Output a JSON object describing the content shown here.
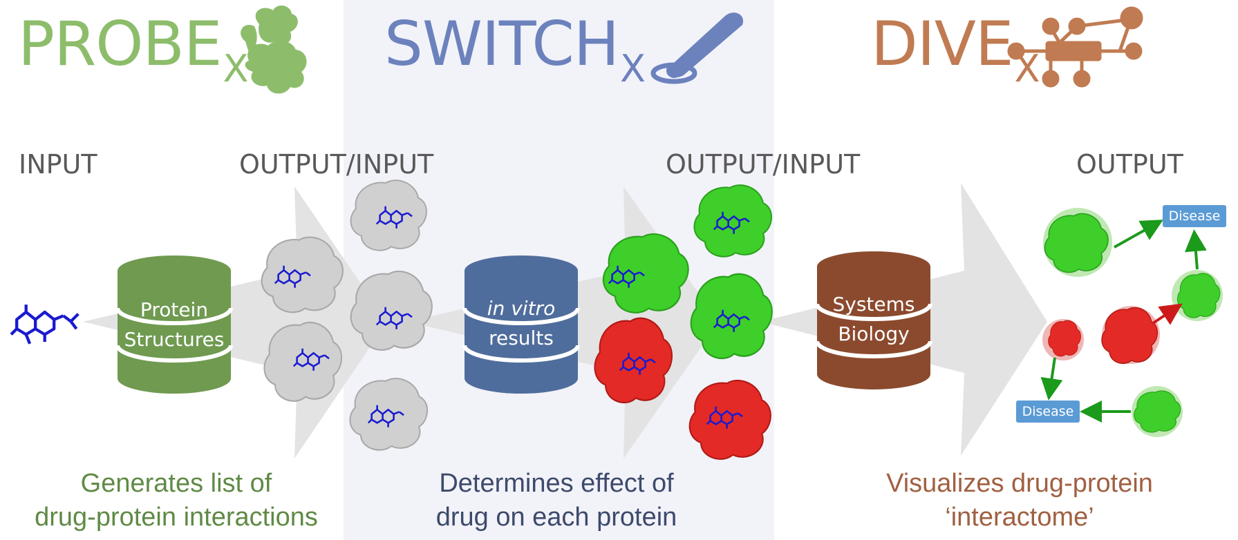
{
  "tools": {
    "probe": {
      "name": "PROBE",
      "sub": "X",
      "color": "#8dbd6b",
      "icon": "protein-cluster-icon"
    },
    "switch": {
      "name": "SWITCH",
      "sub": "X",
      "color": "#6c82bd",
      "icon": "toggle-switch-icon"
    },
    "dive": {
      "name": "DIVE",
      "sub": "X",
      "color": "#c07b52",
      "icon": "network-icon"
    }
  },
  "stages": {
    "input": "INPUT",
    "output_input_1": "OUTPUT/INPUT",
    "output_input_2": "OUTPUT/INPUT",
    "output": "OUTPUT"
  },
  "databases": {
    "protein": {
      "line1": "Protein",
      "line2": "Structures",
      "color": "#6f9a50"
    },
    "invitro": {
      "line1": "in vitro",
      "line2": "results",
      "color": "#4f6d9c"
    },
    "systems": {
      "line1": "Systems",
      "line2": "Biology",
      "color": "#8b4a2e"
    }
  },
  "network": {
    "disease_top": "Disease",
    "disease_bottom": "Disease"
  },
  "captions": {
    "probe": {
      "line1": "Generates list of",
      "line2": "drug-protein interactions",
      "color": "#5f8a45"
    },
    "switch": {
      "line1": "Determines effect of",
      "line2": "drug on each protein",
      "color": "#3d4a6b"
    },
    "dive": {
      "line1": "Visualizes drug-protein",
      "line2": "‘interactome’",
      "color": "#a06041"
    }
  },
  "colors": {
    "arrow_grey": "#e3e3e3",
    "protein_grey": "#d0d0d0",
    "protein_green": "#3ecf2a",
    "protein_red": "#e42a26",
    "drug_blue": "#1a1ad0",
    "edge_green": "#1b9a1b",
    "edge_red": "#cc1a1a"
  }
}
